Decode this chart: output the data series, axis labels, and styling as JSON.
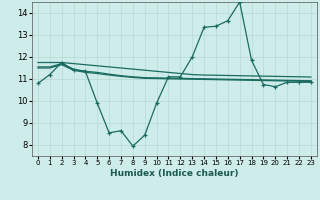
{
  "xlabel": "Humidex (Indice chaleur)",
  "bg_color": "#ceecea",
  "grid_color": "#b8d8d5",
  "line_color": "#1a6b60",
  "xlim": [
    -0.5,
    23.5
  ],
  "ylim": [
    7.5,
    14.5
  ],
  "yticks": [
    8,
    9,
    10,
    11,
    12,
    13,
    14
  ],
  "xticks": [
    0,
    1,
    2,
    3,
    4,
    5,
    6,
    7,
    8,
    9,
    10,
    11,
    12,
    13,
    14,
    15,
    16,
    17,
    18,
    19,
    20,
    21,
    22,
    23
  ],
  "series1_x": [
    0,
    1,
    2,
    3,
    4,
    5,
    6,
    7,
    8,
    9,
    10,
    11,
    12,
    13,
    14,
    15,
    16,
    17,
    18,
    19,
    20,
    21,
    22,
    23
  ],
  "series1_y": [
    10.8,
    11.2,
    11.75,
    11.4,
    11.35,
    9.9,
    8.55,
    8.65,
    7.95,
    8.45,
    9.9,
    11.1,
    11.1,
    12.0,
    13.35,
    13.4,
    13.65,
    14.5,
    11.85,
    10.75,
    10.65,
    10.85,
    10.85,
    10.85
  ],
  "series2_x": [
    0,
    1,
    2,
    3,
    4,
    5,
    6,
    7,
    8,
    9,
    10,
    11,
    12,
    13,
    14,
    15,
    16,
    17,
    18,
    19,
    20,
    21,
    22,
    23
  ],
  "series2_y": [
    11.75,
    11.75,
    11.75,
    11.7,
    11.65,
    11.6,
    11.55,
    11.5,
    11.45,
    11.4,
    11.35,
    11.3,
    11.25,
    11.2,
    11.18,
    11.17,
    11.16,
    11.15,
    11.14,
    11.13,
    11.12,
    11.11,
    11.1,
    11.09
  ],
  "series3_x": [
    0,
    1,
    2,
    3,
    4,
    5,
    6,
    7,
    8,
    9,
    10,
    11,
    12,
    13,
    14,
    15,
    16,
    17,
    18,
    19,
    20,
    21,
    22,
    23
  ],
  "series3_y": [
    11.55,
    11.55,
    11.7,
    11.45,
    11.35,
    11.3,
    11.22,
    11.15,
    11.1,
    11.06,
    11.05,
    11.04,
    11.03,
    11.02,
    11.01,
    11.0,
    10.99,
    10.98,
    10.97,
    10.96,
    10.95,
    10.94,
    10.93,
    10.92
  ],
  "series4_x": [
    0,
    1,
    2,
    3,
    4,
    5,
    6,
    7,
    8,
    9,
    10,
    11,
    12,
    13,
    14,
    15,
    16,
    17,
    18,
    19,
    20,
    21,
    22,
    23
  ],
  "series4_y": [
    11.5,
    11.5,
    11.65,
    11.4,
    11.3,
    11.25,
    11.18,
    11.12,
    11.07,
    11.03,
    11.02,
    11.01,
    11.0,
    10.99,
    10.98,
    10.97,
    10.96,
    10.95,
    10.94,
    10.93,
    10.92,
    10.91,
    10.9,
    10.89
  ]
}
